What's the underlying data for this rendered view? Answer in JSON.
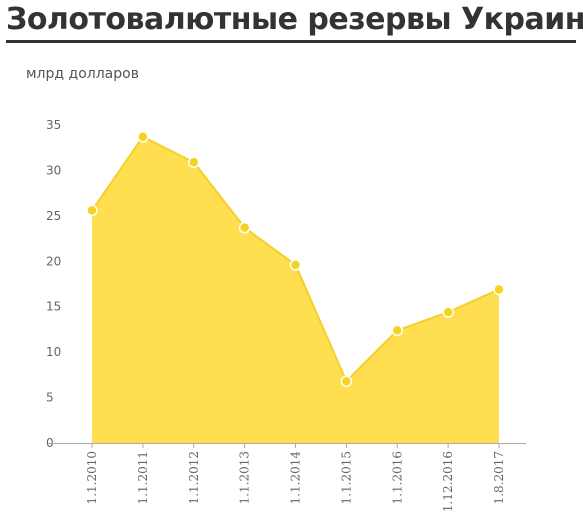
{
  "page": {
    "title": "Золотовалютные резервы Украины",
    "unit_label": "млрд долларов"
  },
  "colors": {
    "area_fill": "#FFDF4F",
    "line": "#F5CF2A",
    "marker_fill": "#F5D320",
    "marker_stroke": "#ffffff",
    "axis": "#aaaaaa",
    "text": "#333333"
  },
  "chart_data": {
    "type": "area",
    "title": "Золотовалютные резервы Украины",
    "xlabel": "",
    "ylabel": "млрд долларов",
    "ylim": [
      0,
      35
    ],
    "yticks": [
      0,
      5,
      10,
      15,
      20,
      25,
      30,
      35
    ],
    "grid": false,
    "categories": [
      "1.1.2010",
      "1.1.2011",
      "1.1.2012",
      "1.1.2013",
      "1.1.2014",
      "1.1.2015",
      "1.1.2016",
      "1.12.2016",
      "1.8.2017"
    ],
    "values": [
      25.6,
      33.7,
      30.9,
      23.7,
      19.6,
      6.8,
      12.4,
      14.4,
      16.9
    ]
  }
}
